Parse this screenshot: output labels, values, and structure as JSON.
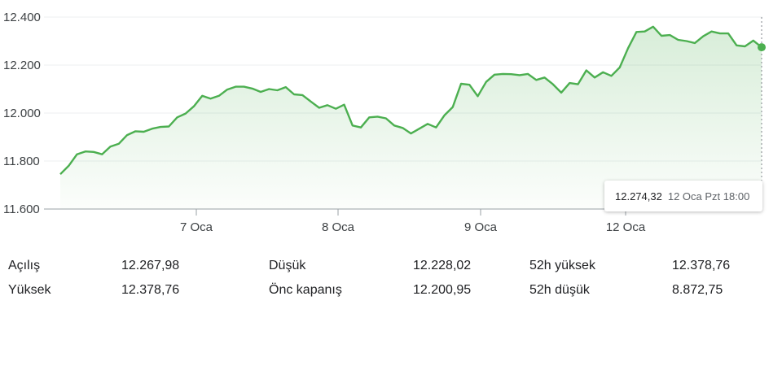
{
  "chart_data": {
    "type": "area",
    "x_labels": [
      "7 Oca",
      "8 Oca",
      "9 Oca",
      "12 Oca"
    ],
    "y_ticks": [
      "12.400",
      "12.200",
      "12.000",
      "11.800",
      "11.600"
    ],
    "ylim": [
      11600,
      12400
    ],
    "grid": true,
    "color": "#4caf50",
    "values": [
      11745,
      11780,
      11828,
      11840,
      11838,
      11828,
      11860,
      11872,
      11908,
      11924,
      11922,
      11935,
      11942,
      11944,
      11982,
      11998,
      12028,
      12072,
      12060,
      12072,
      12098,
      12110,
      12110,
      12102,
      12088,
      12100,
      12095,
      12108,
      12078,
      12075,
      12048,
      12022,
      12033,
      12018,
      12035,
      11948,
      11940,
      11982,
      11985,
      11978,
      11948,
      11938,
      11915,
      11935,
      11955,
      11940,
      11990,
      12025,
      12122,
      12118,
      12070,
      12130,
      12160,
      12163,
      12162,
      12158,
      12163,
      12138,
      12148,
      12120,
      12085,
      12125,
      12120,
      12178,
      12148,
      12170,
      12155,
      12190,
      12270,
      12338,
      12340,
      12360,
      12322,
      12325,
      12305,
      12300,
      12292,
      12320,
      12340,
      12332,
      12332,
      12282,
      12278,
      12302,
      12274.32
    ],
    "tooltip": {
      "value": "12.274,32",
      "time": "12 Oca Pzt 18:00"
    }
  },
  "stats": [
    {
      "label": "Açılış",
      "value": "12.267,98",
      "label2": "Düşük",
      "value2": "12.228,02",
      "label3": "52h yüksek",
      "value3": "12.378,76"
    },
    {
      "label": "Yüksek",
      "value": "12.378,76",
      "label2": "Önc kapanış",
      "value2": "12.200,95",
      "label3": "52h düşük",
      "value3": "8.872,75"
    }
  ]
}
